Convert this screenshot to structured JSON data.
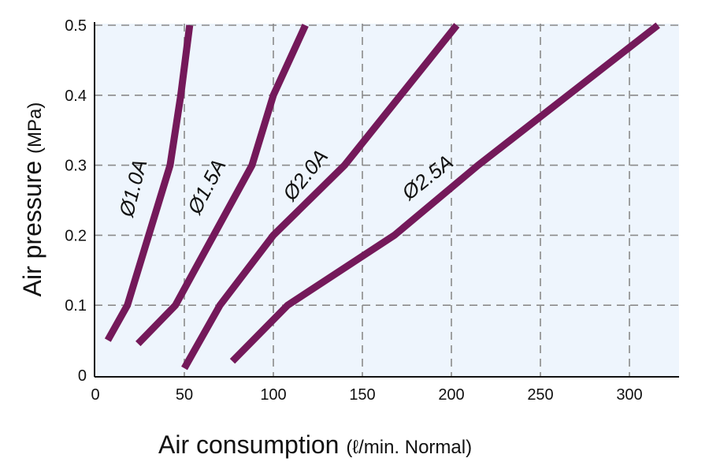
{
  "chart_data": {
    "type": "line",
    "xlabel": "Air consumption",
    "xlabel_unit": "(ℓ/min. Normal)",
    "ylabel": "Air pressure",
    "ylabel_unit": "(MPa)",
    "xlim": [
      0,
      325
    ],
    "ylim": [
      0,
      0.5
    ],
    "xticks": [
      0,
      50,
      100,
      150,
      200,
      250,
      300
    ],
    "yticks": [
      0,
      0.1,
      0.2,
      0.3,
      0.4,
      0.5
    ],
    "xtick_labels": [
      "0",
      "50",
      "100",
      "150",
      "200",
      "250",
      "300"
    ],
    "ytick_labels": [
      "0",
      "0.1",
      "0.2",
      "0.3",
      "0.4",
      "0.5"
    ],
    "grid": true,
    "legend": "none",
    "colors": {
      "line": "#74195a",
      "plot_background": "#eef5fd",
      "grid": "#8a8a8a",
      "axis": "#111111"
    },
    "series": [
      {
        "name": "Ø1.0A",
        "x": [
          7,
          18,
          42,
          48,
          53
        ],
        "y": [
          0.05,
          0.1,
          0.3,
          0.4,
          0.5
        ],
        "label_at": [
          25,
          0.265
        ]
      },
      {
        "name": "Ø1.5A",
        "x": [
          24,
          45,
          88,
          100,
          118
        ],
        "y": [
          0.045,
          0.1,
          0.3,
          0.4,
          0.5
        ],
        "label_at": [
          66,
          0.265
        ]
      },
      {
        "name": "Ø2.0A",
        "x": [
          50,
          70,
          100,
          140,
          203
        ],
        "y": [
          0.01,
          0.1,
          0.2,
          0.3,
          0.5
        ],
        "label_at": [
          121,
          0.28
        ]
      },
      {
        "name": "Ø2.5A",
        "x": [
          77,
          108,
          168,
          215,
          316
        ],
        "y": [
          0.02,
          0.1,
          0.2,
          0.3,
          0.5
        ],
        "label_at": [
          189,
          0.275
        ]
      }
    ]
  }
}
